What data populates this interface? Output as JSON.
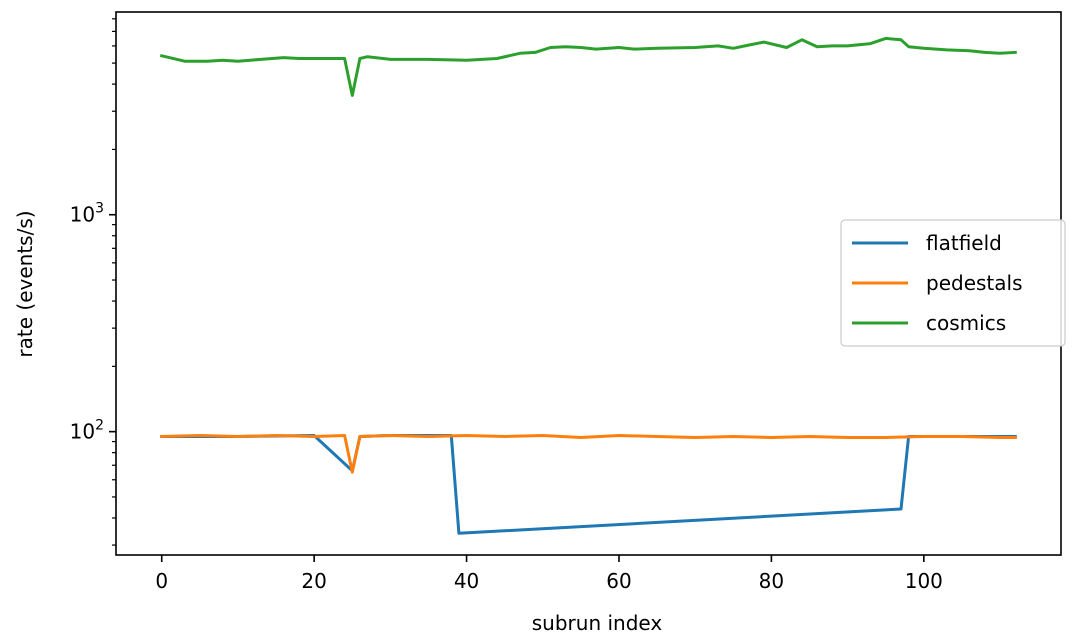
{
  "chart_data": {
    "type": "line",
    "xlabel": "subrun index",
    "ylabel": "rate (events/s)",
    "xlim": [
      -6,
      118
    ],
    "ylim": [
      27,
      8600
    ],
    "yscale": "log",
    "x_ticks": [
      0,
      20,
      40,
      60,
      80,
      100
    ],
    "y_major_ticks": [
      {
        "value": 100,
        "base": "10",
        "exp": "2"
      },
      {
        "value": 1000,
        "base": "10",
        "exp": "3"
      }
    ],
    "y_minor_ticks": [
      30,
      40,
      50,
      60,
      70,
      80,
      90,
      200,
      300,
      400,
      500,
      600,
      700,
      800,
      900,
      2000,
      3000,
      4000,
      5000,
      6000,
      7000,
      8000
    ],
    "grid": false,
    "legend_position": "center-right",
    "series": [
      {
        "name": "flatfield",
        "color": "#1f77b4",
        "points": [
          [
            0,
            95
          ],
          [
            10,
            95
          ],
          [
            20,
            96
          ],
          [
            25,
            66
          ],
          [
            26,
            95
          ],
          [
            30,
            96
          ],
          [
            38,
            96
          ],
          [
            39,
            34
          ],
          [
            97,
            44
          ],
          [
            98,
            95
          ],
          [
            105,
            95
          ],
          [
            112,
            95
          ]
        ]
      },
      {
        "name": "pedestals",
        "color": "#ff7f0e",
        "points": [
          [
            0,
            95
          ],
          [
            5,
            96
          ],
          [
            10,
            95
          ],
          [
            15,
            96
          ],
          [
            20,
            95
          ],
          [
            24,
            96
          ],
          [
            25,
            65
          ],
          [
            26,
            95
          ],
          [
            30,
            96
          ],
          [
            35,
            95
          ],
          [
            40,
            96
          ],
          [
            45,
            95
          ],
          [
            50,
            96
          ],
          [
            55,
            94
          ],
          [
            60,
            96
          ],
          [
            65,
            95
          ],
          [
            70,
            94
          ],
          [
            75,
            95
          ],
          [
            80,
            94
          ],
          [
            85,
            95
          ],
          [
            90,
            94
          ],
          [
            95,
            94
          ],
          [
            100,
            95
          ],
          [
            105,
            95
          ],
          [
            110,
            94
          ],
          [
            112,
            94
          ]
        ]
      },
      {
        "name": "cosmics",
        "color": "#2ca02c",
        "points": [
          [
            0,
            5400
          ],
          [
            1,
            5300
          ],
          [
            3,
            5100
          ],
          [
            6,
            5100
          ],
          [
            8,
            5150
          ],
          [
            10,
            5100
          ],
          [
            13,
            5200
          ],
          [
            16,
            5300
          ],
          [
            18,
            5250
          ],
          [
            20,
            5250
          ],
          [
            24,
            5250
          ],
          [
            25,
            3550
          ],
          [
            26,
            5250
          ],
          [
            27,
            5350
          ],
          [
            30,
            5200
          ],
          [
            35,
            5200
          ],
          [
            40,
            5150
          ],
          [
            44,
            5250
          ],
          [
            47,
            5550
          ],
          [
            49,
            5600
          ],
          [
            51,
            5900
          ],
          [
            53,
            5950
          ],
          [
            55,
            5900
          ],
          [
            57,
            5800
          ],
          [
            60,
            5900
          ],
          [
            62,
            5800
          ],
          [
            65,
            5850
          ],
          [
            70,
            5900
          ],
          [
            73,
            6000
          ],
          [
            75,
            5850
          ],
          [
            77,
            6050
          ],
          [
            79,
            6250
          ],
          [
            82,
            5900
          ],
          [
            84,
            6400
          ],
          [
            86,
            5950
          ],
          [
            88,
            6000
          ],
          [
            90,
            6000
          ],
          [
            93,
            6150
          ],
          [
            95,
            6500
          ],
          [
            97,
            6400
          ],
          [
            98,
            5950
          ],
          [
            100,
            5850
          ],
          [
            103,
            5750
          ],
          [
            106,
            5700
          ],
          [
            108,
            5600
          ],
          [
            110,
            5550
          ],
          [
            112,
            5600
          ]
        ]
      }
    ]
  }
}
